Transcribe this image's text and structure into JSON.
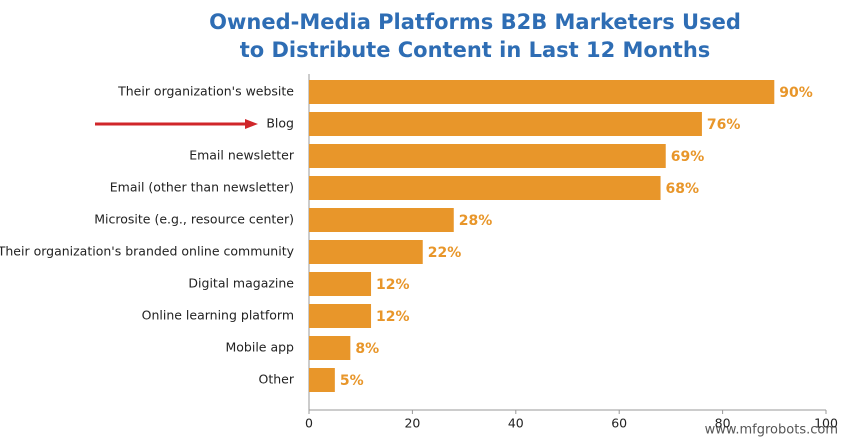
{
  "chart_data": {
    "type": "hbar",
    "title": "Owned-Media Platforms B2B Marketers Used to Distribute Content in Last 12 Months",
    "categories": [
      "Their organization's website",
      "Blog",
      "Email newsletter",
      "Email (other than newsletter)",
      "Microsite (e.g., resource center)",
      "Their organization's branded online community",
      "Digital magazine",
      "Online learning platform",
      "Mobile app",
      "Other"
    ],
    "values": [
      90,
      76,
      69,
      68,
      28,
      22,
      12,
      12,
      8,
      5
    ],
    "value_labels": [
      "90%",
      "76%",
      "69%",
      "68%",
      "28%",
      "22%",
      "12%",
      "12%",
      "8%",
      "5%"
    ],
    "color": "#e8962a",
    "xlim": [
      0,
      100
    ],
    "xticks": [
      0,
      20,
      40,
      60,
      80,
      100
    ],
    "grid": false,
    "watermark": "www.mfgrobots.com"
  }
}
